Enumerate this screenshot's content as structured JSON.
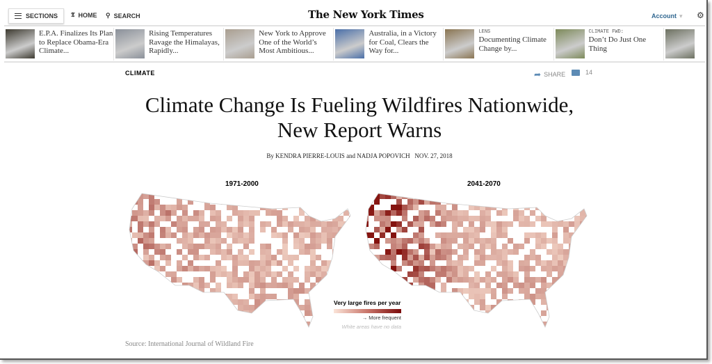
{
  "header": {
    "sections": "SECTIONS",
    "home": "HOME",
    "search": "SEARCH",
    "logo": "The New York Times",
    "account": "Account",
    "account_caret": "▾"
  },
  "strip": [
    {
      "kicker": "",
      "headline": "E.P.A. Finalizes Its Plan to Replace Obama-Era Climate...",
      "color": "#3d3a30"
    },
    {
      "kicker": "",
      "headline": "Rising Temperatures Ravage the Himalayas, Rapidly...",
      "color": "#8a9099"
    },
    {
      "kicker": "",
      "headline": "New York to Approve One of the World’s Most Ambitious...",
      "color": "#a99e90"
    },
    {
      "kicker": "",
      "headline": "Australia, in a Victory for Coal, Clears the Way for...",
      "color": "#4a6fa8"
    },
    {
      "kicker": "LENS",
      "headline": "Documenting Climate Change by...",
      "color": "#8a7552"
    },
    {
      "kicker": "CLIMATE FWD:",
      "headline": "Don’t Do Just One Thing",
      "color": "#7d8a5a"
    },
    {
      "kicker": "",
      "headline": "",
      "color": "#6c7060"
    }
  ],
  "article": {
    "category": "CLIMATE",
    "share": "SHARE",
    "comments": "14",
    "headline": "Climate Change Is Fueling Wildfires Nationwide, New Report Warns",
    "byline": "By KENDRA PIERRE-LOUIS and NADJA POPOVICH   NOV. 27, 2018",
    "map_left_title": "1971-2000",
    "map_right_title": "2041-2070",
    "legend_title": "Very large fires per year",
    "legend_arrow": "→ More frequent",
    "legend_note": "White areas have no data",
    "source": "Source: International Journal of Wildland Fire"
  }
}
